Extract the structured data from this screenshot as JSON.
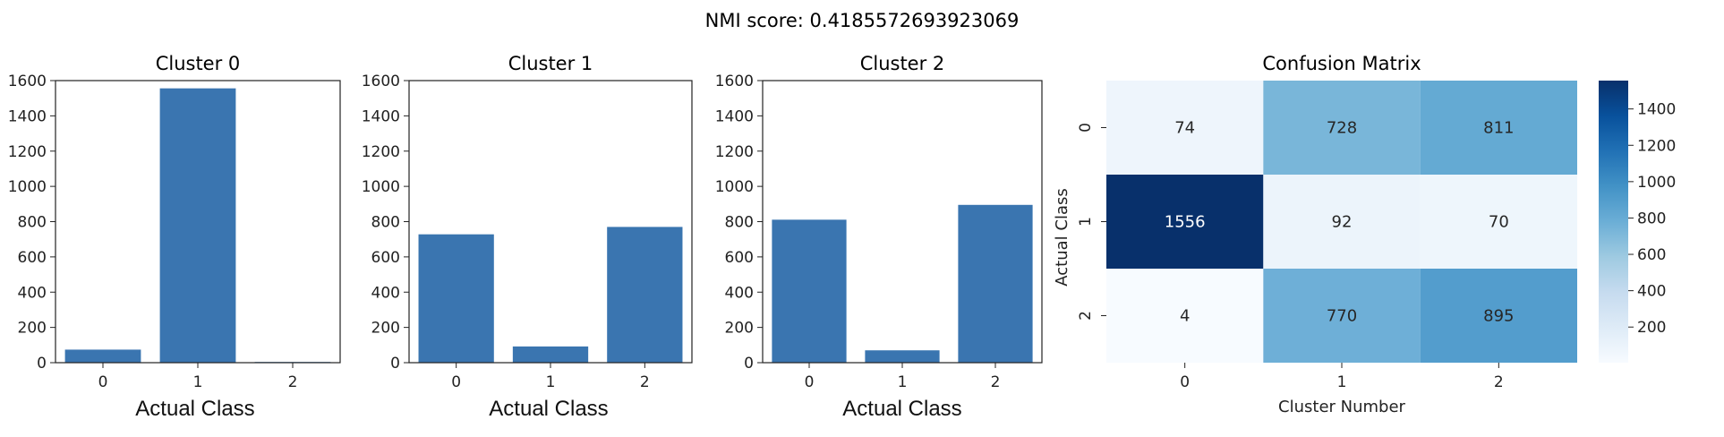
{
  "suptitle": "NMI score: 0.4185572693923069",
  "colors": {
    "bar": "#3a75b0",
    "axis": "#222222",
    "text_dark": "#262626",
    "text_light": "#ffffff"
  },
  "chart_data": [
    {
      "type": "bar",
      "title": "Cluster 0",
      "xlabel": "Actual Class",
      "ylabel": "",
      "categories": [
        "0",
        "1",
        "2"
      ],
      "values": [
        74,
        1556,
        4
      ],
      "ylim": [
        0,
        1600
      ],
      "yticks": [
        0,
        200,
        400,
        600,
        800,
        1000,
        1200,
        1400,
        1600
      ],
      "grid": false
    },
    {
      "type": "bar",
      "title": "Cluster 1",
      "xlabel": "Actual Class",
      "ylabel": "",
      "categories": [
        "0",
        "1",
        "2"
      ],
      "values": [
        728,
        92,
        770
      ],
      "ylim": [
        0,
        1600
      ],
      "yticks": [
        0,
        200,
        400,
        600,
        800,
        1000,
        1200,
        1400,
        1600
      ],
      "grid": false
    },
    {
      "type": "bar",
      "title": "Cluster 2",
      "xlabel": "Actual Class",
      "ylabel": "",
      "categories": [
        "0",
        "1",
        "2"
      ],
      "values": [
        811,
        70,
        895
      ],
      "ylim": [
        0,
        1600
      ],
      "yticks": [
        0,
        200,
        400,
        600,
        800,
        1000,
        1200,
        1400,
        1600
      ],
      "grid": false
    },
    {
      "type": "heatmap",
      "title": "Confusion Matrix",
      "xlabel": "Cluster Number",
      "ylabel": "Actual Class",
      "x_categories": [
        "0",
        "1",
        "2"
      ],
      "y_categories": [
        "0",
        "1",
        "2"
      ],
      "matrix": [
        [
          74,
          728,
          811
        ],
        [
          1556,
          92,
          70
        ],
        [
          4,
          770,
          895
        ]
      ],
      "colormap": "Blues",
      "colorbar_range": [
        4,
        1556
      ],
      "colorbar_ticks": [
        200,
        400,
        600,
        800,
        1000,
        1200,
        1400
      ]
    }
  ]
}
